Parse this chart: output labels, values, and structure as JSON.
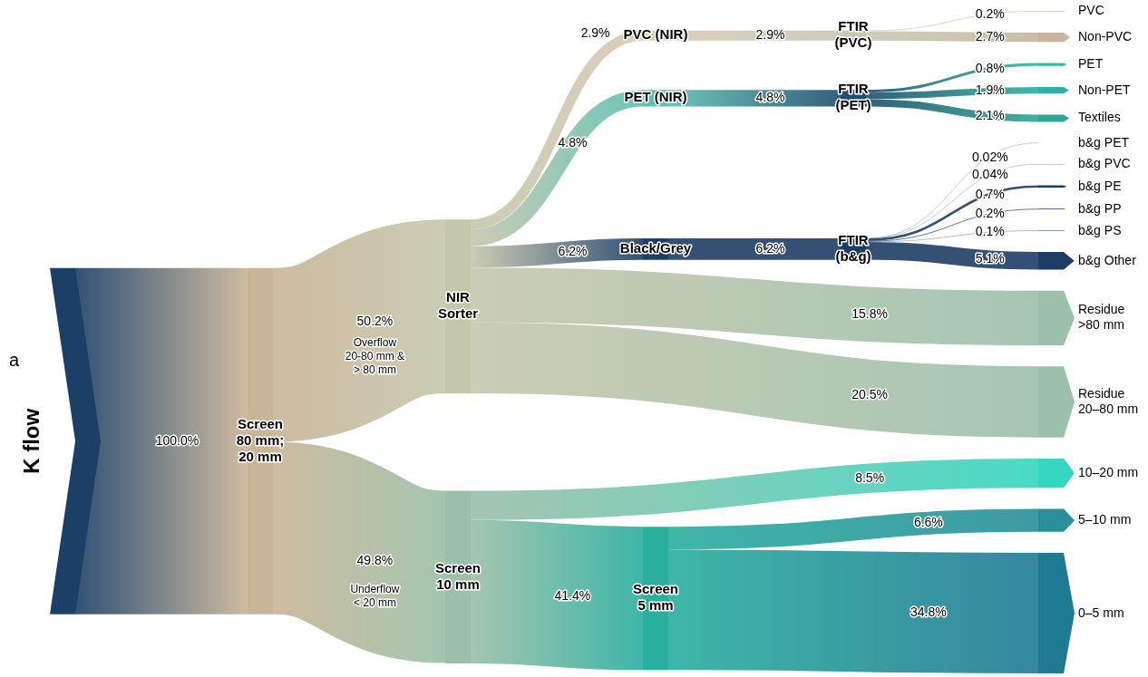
{
  "chart_data": {
    "type": "other",
    "categories": [
      "K flow",
      "Screen\n80 mm;\n20 mm",
      "NIR\nSorter",
      "Screen\n10 mm",
      "PVC (NIR)",
      "PET (NIR)",
      "Black/Grey",
      "Screen\n5 mm",
      "FTIR\n(PVC)",
      "FTIR\n(PET)",
      "FTIR\n(b&g)",
      "PVC",
      "Non-PVC",
      "PET",
      "Non-PET",
      "Textiles",
      "b&g PET",
      "b&g PVC",
      "b&g PE",
      "b&g PP",
      "b&g PS",
      "b&g Other",
      "Residue\n>80 mm",
      "Residue\n20–80 mm",
      "10–20 mm",
      "5–10 mm",
      "0–5 mm"
    ],
    "colors": [
      "#1b3f66",
      "#c8b496",
      "#c5c7ad",
      "#9bbfa8",
      "#d9c8b4",
      "#5cbfb0",
      "#1e3d66",
      "#2aae9e",
      "#c8c8b4",
      "#1e4f6e",
      "#1e3d66",
      "#d4bfa5",
      "#c6b59c",
      "#35b8aa",
      "#2fb0a0",
      "#2ca89a",
      "#1e3d66",
      "#1e3d66",
      "#1e3d66",
      "#1e3d66",
      "#1e3d66",
      "#1e3d66",
      "#9cc0aa",
      "#9cc0aa",
      "#35d6c0",
      "#2a8f98",
      "#1f7a94"
    ],
    "series": [
      {
        "values": [
          null,
          100,
          null,
          null,
          null,
          null,
          null,
          null,
          null,
          null,
          null,
          null,
          null,
          null,
          null,
          null,
          null,
          null,
          null,
          null,
          null,
          null,
          null,
          null,
          null,
          null,
          null
        ],
        "value_labels": [
          null,
          "100.0%",
          null,
          null,
          null,
          null,
          null,
          null,
          null,
          null,
          null,
          null,
          null,
          null,
          null,
          null,
          null,
          null,
          null,
          null,
          null,
          null,
          null,
          null,
          null,
          null,
          null
        ]
      },
      {
        "values": [
          null,
          null,
          50.2,
          49.8,
          null,
          null,
          null,
          null,
          null,
          null,
          null,
          null,
          null,
          null,
          null,
          null,
          null,
          null,
          null,
          null,
          null,
          null,
          null,
          null,
          null,
          null,
          null
        ],
        "value_labels": [
          null,
          null,
          "50.2%",
          "49.8%",
          null,
          null,
          null,
          null,
          null,
          null,
          null,
          null,
          null,
          null,
          null,
          null,
          null,
          null,
          null,
          null,
          null,
          null,
          null,
          null,
          null,
          null,
          null
        ]
      },
      {
        "values": [
          null,
          null,
          null,
          null,
          2.9,
          4.8,
          6.2,
          null,
          null,
          null,
          null,
          null,
          null,
          null,
          null,
          null,
          null,
          null,
          null,
          null,
          null,
          null,
          15.8,
          20.5,
          null,
          null,
          null
        ],
        "value_labels": [
          null,
          null,
          null,
          null,
          "2.9%",
          "4.8%",
          "6.2%",
          null,
          null,
          null,
          null,
          null,
          null,
          null,
          null,
          null,
          null,
          null,
          null,
          null,
          null,
          null,
          "15.8%",
          "20.5%",
          null,
          null,
          null
        ]
      },
      {
        "values": [
          null,
          null,
          null,
          null,
          null,
          null,
          null,
          41.4,
          null,
          null,
          null,
          null,
          null,
          null,
          null,
          null,
          null,
          null,
          null,
          null,
          null,
          null,
          null,
          null,
          8.5,
          null,
          null
        ],
        "value_labels": [
          null,
          null,
          null,
          null,
          null,
          null,
          null,
          "41.4%",
          null,
          null,
          null,
          null,
          null,
          null,
          null,
          null,
          null,
          null,
          null,
          null,
          null,
          null,
          null,
          null,
          "8.5%",
          null,
          null
        ]
      },
      {
        "values": [
          null,
          null,
          null,
          null,
          null,
          null,
          null,
          null,
          2.9,
          null,
          null,
          null,
          null,
          null,
          null,
          null,
          null,
          null,
          null,
          null,
          null,
          null,
          null,
          null,
          null,
          null,
          null
        ],
        "value_labels": [
          null,
          null,
          null,
          null,
          null,
          null,
          null,
          null,
          "2.9%",
          null,
          null,
          null,
          null,
          null,
          null,
          null,
          null,
          null,
          null,
          null,
          null,
          null,
          null,
          null,
          null,
          null,
          null
        ]
      },
      {
        "values": [
          null,
          null,
          null,
          null,
          null,
          null,
          null,
          null,
          null,
          4.8,
          null,
          null,
          null,
          null,
          null,
          null,
          null,
          null,
          null,
          null,
          null,
          null,
          null,
          null,
          null,
          null,
          null
        ],
        "value_labels": [
          null,
          null,
          null,
          null,
          null,
          null,
          null,
          null,
          null,
          "4.8%",
          null,
          null,
          null,
          null,
          null,
          null,
          null,
          null,
          null,
          null,
          null,
          null,
          null,
          null,
          null,
          null,
          null
        ]
      },
      {
        "values": [
          null,
          null,
          null,
          null,
          null,
          null,
          null,
          null,
          null,
          null,
          6.2,
          null,
          null,
          null,
          null,
          null,
          null,
          null,
          null,
          null,
          null,
          null,
          null,
          null,
          null,
          null,
          null
        ],
        "value_labels": [
          null,
          null,
          null,
          null,
          null,
          null,
          null,
          null,
          null,
          null,
          "6.2%",
          null,
          null,
          null,
          null,
          null,
          null,
          null,
          null,
          null,
          null,
          null,
          null,
          null,
          null,
          null,
          null
        ]
      },
      {
        "values": [
          null,
          null,
          null,
          null,
          null,
          null,
          null,
          null,
          null,
          null,
          null,
          null,
          null,
          null,
          null,
          null,
          null,
          null,
          null,
          null,
          null,
          null,
          null,
          null,
          null,
          6.6,
          34.8
        ],
        "value_labels": [
          null,
          null,
          null,
          null,
          null,
          null,
          null,
          null,
          null,
          null,
          null,
          null,
          null,
          null,
          null,
          null,
          null,
          null,
          null,
          null,
          null,
          null,
          null,
          null,
          null,
          "6.6%",
          "34.8%"
        ]
      },
      {
        "values": [
          null,
          null,
          null,
          null,
          null,
          null,
          null,
          null,
          null,
          null,
          null,
          0.2,
          2.7,
          null,
          null,
          null,
          null,
          null,
          null,
          null,
          null,
          null,
          null,
          null,
          null,
          null,
          null
        ],
        "value_labels": [
          null,
          null,
          null,
          null,
          null,
          null,
          null,
          null,
          null,
          null,
          null,
          "0.2%",
          "2.7%",
          null,
          null,
          null,
          null,
          null,
          null,
          null,
          null,
          null,
          null,
          null,
          null,
          null,
          null
        ]
      },
      {
        "values": [
          null,
          null,
          null,
          null,
          null,
          null,
          null,
          null,
          null,
          null,
          null,
          null,
          null,
          0.8,
          1.9,
          2.1,
          null,
          null,
          null,
          null,
          null,
          null,
          null,
          null,
          null,
          null,
          null
        ],
        "value_labels": [
          null,
          null,
          null,
          null,
          null,
          null,
          null,
          null,
          null,
          null,
          null,
          null,
          null,
          "0.8%",
          "1.9%",
          "2.1%",
          null,
          null,
          null,
          null,
          null,
          null,
          null,
          null,
          null,
          null,
          null
        ]
      },
      {
        "values": [
          null,
          null,
          null,
          null,
          null,
          null,
          null,
          null,
          null,
          null,
          null,
          null,
          null,
          null,
          null,
          null,
          0.02,
          0.04,
          0.7,
          0.2,
          0.1,
          5.1,
          null,
          null,
          null,
          null,
          null
        ],
        "value_labels": [
          null,
          null,
          null,
          null,
          null,
          null,
          null,
          null,
          null,
          null,
          null,
          null,
          null,
          null,
          null,
          null,
          "0.02%",
          "0.04%",
          "0.7%",
          "0.2%",
          "0.1%",
          "5.1%",
          null,
          null,
          null,
          null,
          null
        ]
      }
    ],
    "annotations": [
      "a",
      {
        "text": "Overflow\n20-80 mm &\n> 80 mm",
        "x": "NIR\nSorter"
      },
      {
        "text": "Underflow\n< 20 mm",
        "x": "Screen\n10 mm"
      }
    ]
  }
}
